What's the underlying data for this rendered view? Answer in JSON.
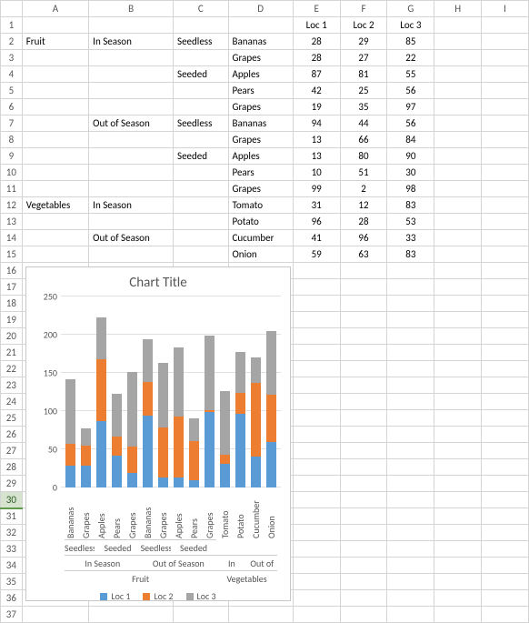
{
  "columns": [
    "A",
    "B",
    "C",
    "D",
    "E",
    "F",
    "G",
    "H",
    "I"
  ],
  "selected_row_header": 30,
  "table": {
    "header": {
      "E": "Loc 1",
      "F": "Loc 2",
      "G": "Loc 3"
    },
    "rows": [
      {
        "n": 2,
        "A": "Fruit",
        "B": "In Season",
        "C": "Seedless",
        "D": "Bananas",
        "E": 28,
        "F": 29,
        "G": 85
      },
      {
        "n": 3,
        "A": "",
        "B": "",
        "C": "",
        "D": "Grapes",
        "E": 28,
        "F": 27,
        "G": 22
      },
      {
        "n": 4,
        "A": "",
        "B": "",
        "C": "Seeded",
        "D": "Apples",
        "E": 87,
        "F": 81,
        "G": 55
      },
      {
        "n": 5,
        "A": "",
        "B": "",
        "C": "",
        "D": "Pears",
        "E": 42,
        "F": 25,
        "G": 56
      },
      {
        "n": 6,
        "A": "",
        "B": "",
        "C": "",
        "D": "Grapes",
        "E": 19,
        "F": 35,
        "G": 97
      },
      {
        "n": 7,
        "A": "",
        "B": "Out of Season",
        "C": "Seedless",
        "D": "Bananas",
        "E": 94,
        "F": 44,
        "G": 56
      },
      {
        "n": 8,
        "A": "",
        "B": "",
        "C": "",
        "D": "Grapes",
        "E": 13,
        "F": 66,
        "G": 84
      },
      {
        "n": 9,
        "A": "",
        "B": "",
        "C": "Seeded",
        "D": "Apples",
        "E": 13,
        "F": 80,
        "G": 90
      },
      {
        "n": 10,
        "A": "",
        "B": "",
        "C": "",
        "D": "Pears",
        "E": 10,
        "F": 51,
        "G": 30
      },
      {
        "n": 11,
        "A": "",
        "B": "",
        "C": "",
        "D": "Grapes",
        "E": 99,
        "F": 2,
        "G": 98
      },
      {
        "n": 12,
        "A": "Vegetables",
        "B": "In Season",
        "C": "",
        "D": "Tomato",
        "E": 31,
        "F": 12,
        "G": 83
      },
      {
        "n": 13,
        "A": "",
        "B": "",
        "C": "",
        "D": "Potato",
        "E": 96,
        "F": 28,
        "G": 53
      },
      {
        "n": 14,
        "A": "",
        "B": "Out of Season",
        "C": "",
        "D": "Cucumber",
        "E": 41,
        "F": 96,
        "G": 33
      },
      {
        "n": 15,
        "A": "",
        "B": "",
        "C": "",
        "D": "Onion",
        "E": 59,
        "F": 63,
        "G": 83
      }
    ],
    "extra_row_headers": [
      16,
      17,
      18,
      19,
      20,
      21,
      22,
      23,
      24,
      25,
      26,
      27,
      28,
      29,
      30,
      31,
      32,
      33,
      34,
      35,
      36,
      37
    ]
  },
  "chart": {
    "type": "stacked-bar",
    "title": "Chart Title",
    "title_fontsize": 15,
    "background_color": "#ffffff",
    "grid_color": "#e0e0e0",
    "label_fontsize": 10,
    "ylim": [
      0,
      250
    ],
    "ytick_step": 50,
    "yticks": [
      0,
      50,
      100,
      150,
      200,
      250
    ],
    "series": [
      {
        "name": "Loc 1",
        "color": "#5b9bd5"
      },
      {
        "name": "Loc 2",
        "color": "#ed7d31"
      },
      {
        "name": "Loc 3",
        "color": "#a5a5a5"
      }
    ],
    "categories": [
      {
        "label": "Bananas",
        "values": [
          28,
          29,
          85
        ]
      },
      {
        "label": "Grapes",
        "values": [
          28,
          27,
          22
        ]
      },
      {
        "label": "Apples",
        "values": [
          87,
          81,
          55
        ]
      },
      {
        "label": "Pears",
        "values": [
          42,
          25,
          56
        ]
      },
      {
        "label": "Grapes",
        "values": [
          19,
          35,
          97
        ]
      },
      {
        "label": "Bananas",
        "values": [
          94,
          44,
          56
        ]
      },
      {
        "label": "Grapes",
        "values": [
          13,
          66,
          84
        ]
      },
      {
        "label": "Apples",
        "values": [
          13,
          80,
          90
        ]
      },
      {
        "label": "Pears",
        "values": [
          10,
          51,
          30
        ]
      },
      {
        "label": "Grapes",
        "values": [
          99,
          2,
          98
        ]
      },
      {
        "label": "Tomato",
        "values": [
          31,
          12,
          83
        ]
      },
      {
        "label": "Potato",
        "values": [
          96,
          28,
          53
        ]
      },
      {
        "label": "Cucumber",
        "values": [
          41,
          96,
          33
        ]
      },
      {
        "label": "Onion",
        "values": [
          59,
          63,
          83
        ]
      }
    ],
    "group_level_3": [
      {
        "label": "Seedless",
        "span": 2
      },
      {
        "label": "Seeded",
        "span": 3
      },
      {
        "label": "Seedless",
        "span": 2
      },
      {
        "label": "Seeded",
        "span": 3
      },
      {
        "label": "",
        "span": 2
      },
      {
        "label": "",
        "span": 2
      }
    ],
    "group_level_2": [
      {
        "label": "In Season",
        "span": 5
      },
      {
        "label": "Out of Season",
        "span": 5
      },
      {
        "label": "In Season",
        "span": 2
      },
      {
        "label": "Out of Season",
        "span": 2
      }
    ],
    "group_level_1": [
      {
        "label": "Fruit",
        "span": 10
      },
      {
        "label": "Vegetables",
        "span": 4
      }
    ]
  }
}
